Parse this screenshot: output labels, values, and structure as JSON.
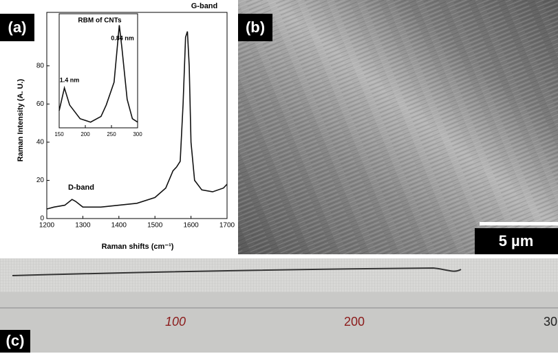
{
  "chart_data": [
    {
      "type": "line",
      "panel_label": "(a)",
      "x_label": "Raman shifts (cm⁻¹)",
      "y_label": "Raman Intensity (A. U.)",
      "annotations": [
        "D-band",
        "G-band"
      ],
      "xlim": [
        1200,
        1700
      ],
      "xticks": [
        1200,
        1300,
        1400,
        1500,
        1600,
        1700
      ],
      "ylim": [
        0,
        108
      ],
      "yticks": [
        0,
        20,
        40,
        60,
        80
      ],
      "series": [
        {
          "color": "#111111",
          "x": [
            1200,
            1220,
            1250,
            1270,
            1280,
            1300,
            1350,
            1400,
            1450,
            1500,
            1530,
            1550,
            1560,
            1570,
            1578,
            1585,
            1590,
            1595,
            1600,
            1610,
            1630,
            1660,
            1690,
            1700
          ],
          "values": [
            5,
            6,
            7,
            10,
            9,
            6,
            6,
            7,
            8,
            11,
            16,
            25,
            27,
            30,
            60,
            95,
            98,
            80,
            40,
            20,
            15,
            14,
            16,
            18
          ]
        }
      ]
    },
    {
      "type": "line",
      "title": "RBM of CNTs",
      "annotations": [
        "1.4 nm",
        "0.84 nm"
      ],
      "xlim": [
        150,
        300
      ],
      "xticks": [
        150,
        200,
        250,
        300
      ],
      "ylim": [
        0,
        100
      ],
      "series": [
        {
          "color": "#111111",
          "x": [
            150,
            160,
            170,
            190,
            210,
            230,
            240,
            255,
            265,
            270,
            280,
            290,
            300
          ],
          "values": [
            15,
            35,
            20,
            8,
            5,
            10,
            20,
            40,
            90,
            70,
            25,
            8,
            5
          ]
        }
      ]
    }
  ],
  "panels": {
    "b_label": "(b)",
    "scale_bar": "5 µm",
    "c_label": "(c)",
    "ruler_marks": [
      "100",
      "200",
      "30"
    ]
  }
}
